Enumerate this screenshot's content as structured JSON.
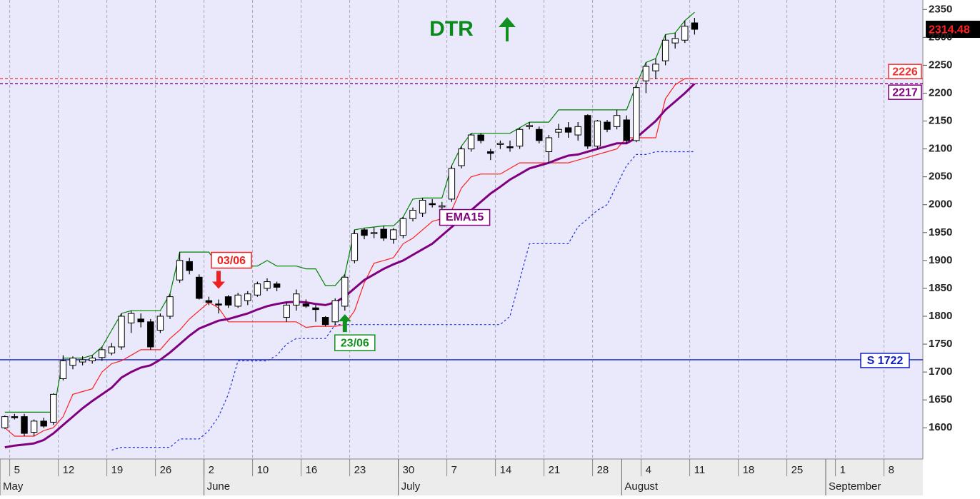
{
  "chart_data": {
    "type": "candlestick",
    "title": "DTR",
    "title_color": "#0a8a1a",
    "categories": [
      null,
      "5",
      null,
      null,
      null,
      null,
      "12",
      null,
      null,
      null,
      null,
      "19",
      null,
      null,
      null,
      null,
      "26",
      null,
      null,
      null,
      null,
      "2",
      null,
      null,
      null,
      null,
      "10",
      null,
      null,
      null,
      null,
      "16",
      null,
      null,
      null,
      null,
      "23",
      null,
      null,
      null,
      null,
      "30",
      null,
      null,
      null,
      null,
      "7",
      null,
      null,
      null,
      null,
      "14",
      null,
      null,
      null,
      null,
      "21",
      null,
      null,
      null,
      null,
      "28",
      null,
      null,
      null,
      null,
      "4",
      null,
      null,
      null,
      null,
      "11",
      null,
      null,
      null,
      null,
      "18",
      null,
      null,
      null,
      null,
      "25",
      null,
      null,
      null,
      null,
      "1",
      null,
      null,
      null,
      null,
      "8",
      null,
      null,
      null
    ],
    "months": [
      {
        "value": 0,
        "label": "May"
      },
      {
        "value": 21,
        "label": "June"
      },
      {
        "value": 41,
        "label": "July"
      },
      {
        "value": 64,
        "label": "August"
      },
      {
        "value": 85,
        "label": "September"
      }
    ],
    "candles": {
      "open": [
        1600,
        1620,
        1620,
        1592,
        1612,
        1610,
        1688,
        1712,
        1718,
        1720,
        1726,
        1734,
        1745,
        1788,
        1795,
        1790,
        1775,
        1800,
        1865,
        1898,
        1870,
        1828,
        1822,
        1835,
        1818,
        1828,
        1838,
        1850,
        1858,
        1798,
        1820,
        1822,
        1815,
        1798,
        1790,
        1818,
        1900,
        1955,
        1948,
        1956,
        1938,
        1945,
        1975,
        1985,
        2002,
        1996,
        2010,
        2070,
        2100,
        2125,
        2095,
        2108,
        2104,
        2105,
        2140,
        2135,
        2095,
        2130,
        2138,
        2125,
        2160,
        2105,
        2148,
        2140,
        2152,
        2115,
        2222,
        2240,
        2258,
        2290,
        2295,
        2326,
        null,
        null,
        null,
        null,
        null,
        null,
        null,
        null,
        null,
        null,
        null,
        null,
        null,
        null,
        null,
        null,
        null,
        null,
        null,
        null,
        null,
        null,
        null
      ],
      "high": [
        1622,
        1625,
        1625,
        1615,
        1618,
        1662,
        1730,
        1728,
        1728,
        1730,
        1745,
        1752,
        1805,
        1810,
        1805,
        1795,
        1805,
        1840,
        1915,
        1905,
        1875,
        1835,
        1830,
        1838,
        1842,
        1845,
        1862,
        1868,
        1862,
        1825,
        1848,
        1830,
        1820,
        1800,
        1832,
        1875,
        1955,
        1958,
        1960,
        1962,
        1958,
        1978,
        1995,
        2012,
        2010,
        2005,
        2070,
        2105,
        2128,
        2128,
        2100,
        2115,
        2115,
        2138,
        2148,
        2140,
        2125,
        2145,
        2148,
        2148,
        2162,
        2152,
        2152,
        2170,
        2160,
        2215,
        2255,
        2262,
        2305,
        2308,
        2330,
        2335,
        null,
        null,
        null,
        null,
        null,
        null,
        null,
        null,
        null,
        null,
        null,
        null,
        null,
        null,
        null,
        null,
        null,
        null,
        null,
        null,
        null,
        null,
        null
      ],
      "low": [
        1598,
        1615,
        1585,
        1585,
        1600,
        1605,
        1685,
        1705,
        1712,
        1715,
        1720,
        1730,
        1740,
        1770,
        1780,
        1740,
        1770,
        1795,
        1860,
        1875,
        1830,
        1820,
        1805,
        1815,
        1815,
        1820,
        1835,
        1845,
        1845,
        1790,
        1810,
        1815,
        1790,
        1782,
        1785,
        1810,
        1895,
        1938,
        1940,
        1935,
        1930,
        1940,
        1970,
        1978,
        1995,
        1985,
        2005,
        2065,
        2095,
        2110,
        2080,
        2100,
        2095,
        2100,
        2135,
        2110,
        2075,
        2120,
        2120,
        2115,
        2100,
        2100,
        2130,
        2135,
        2110,
        2112,
        2200,
        2225,
        2250,
        2280,
        2290,
        2305,
        null,
        null,
        null,
        null,
        null,
        null,
        null,
        null,
        null,
        null,
        null,
        null,
        null,
        null,
        null,
        null,
        null,
        null,
        null,
        null,
        null,
        null,
        null
      ],
      "close": [
        1620,
        1618,
        1590,
        1612,
        1603,
        1660,
        1720,
        1725,
        1722,
        1725,
        1740,
        1745,
        1800,
        1805,
        1790,
        1745,
        1800,
        1835,
        1900,
        1882,
        1832,
        1825,
        1820,
        1820,
        1838,
        1840,
        1858,
        1862,
        1852,
        1820,
        1840,
        1818,
        1812,
        1785,
        1828,
        1870,
        1948,
        1945,
        1950,
        1940,
        1955,
        1975,
        1990,
        2008,
        2000,
        1998,
        2065,
        2100,
        2125,
        2115,
        2092,
        2110,
        2103,
        2135,
        2142,
        2115,
        2120,
        2135,
        2130,
        2140,
        2105,
        2150,
        2135,
        2160,
        2115,
        2210,
        2248,
        2252,
        2295,
        2298,
        2320,
        2314.48,
        null,
        null,
        null,
        null,
        null,
        null,
        null,
        null,
        null,
        null,
        null,
        null,
        null,
        null,
        null,
        null,
        null,
        null,
        null,
        null,
        null,
        null,
        null
      ]
    },
    "series": [
      {
        "color": "#008000",
        "width": 1.2,
        "dash": "none",
        "values": [
          1628,
          1628,
          1628,
          1628,
          1628,
          1628,
          1725,
          1725,
          1725,
          1730,
          1745,
          1775,
          1805,
          1810,
          1810,
          1810,
          1810,
          1840,
          1915,
          1915,
          1915,
          1915,
          1890,
          1890,
          1890,
          1890,
          1890,
          1900,
          1890,
          1890,
          1890,
          1885,
          1885,
          1855,
          1855,
          1875,
          1955,
          1958,
          1960,
          1962,
          1962,
          1978,
          2010,
          2012,
          2012,
          2012,
          2070,
          2105,
          2128,
          2128,
          2128,
          2128,
          2128,
          2138,
          2148,
          2148,
          2148,
          2170,
          2170,
          2170,
          2170,
          2170,
          2170,
          2170,
          2170,
          2215,
          2255,
          2262,
          2305,
          2308,
          2330,
          2345,
          null,
          null,
          null,
          null,
          null,
          null,
          null,
          null,
          null,
          null,
          null,
          null,
          null,
          null,
          null,
          null,
          null,
          null,
          null,
          null,
          null,
          null,
          null
        ]
      },
      {
        "color": "#ff2020",
        "width": 1.2,
        "dash": "none",
        "values": [
          1600,
          1585,
          1585,
          1585,
          1595,
          1600,
          1620,
          1660,
          1665,
          1670,
          1700,
          1715,
          1720,
          1730,
          1740,
          1740,
          1740,
          1760,
          1775,
          1795,
          1810,
          1825,
          1815,
          1790,
          1790,
          1790,
          1790,
          1790,
          1790,
          1790,
          1790,
          1780,
          1782,
          1782,
          1782,
          1785,
          1810,
          1860,
          1895,
          1900,
          1905,
          1930,
          1940,
          1955,
          1970,
          1975,
          1990,
          2030,
          2050,
          2055,
          2055,
          2055,
          2065,
          2075,
          2075,
          2075,
          2075,
          2075,
          2075,
          2080,
          2085,
          2090,
          2095,
          2100,
          2120,
          2120,
          2120,
          2120,
          2190,
          2215,
          2226,
          2226,
          null,
          null,
          null,
          null,
          null,
          null,
          null,
          null,
          null,
          null,
          null,
          null,
          null,
          null,
          null,
          null,
          null,
          null,
          null,
          null,
          null,
          null,
          null
        ]
      },
      {
        "color": "#2030e0",
        "width": 1.2,
        "dash": "3 3",
        "values": [
          null,
          null,
          null,
          null,
          null,
          null,
          null,
          null,
          null,
          null,
          null,
          1560,
          1565,
          1565,
          1565,
          1565,
          1565,
          1565,
          1580,
          1580,
          1580,
          1595,
          1620,
          1660,
          1720,
          1720,
          1720,
          1720,
          1730,
          1750,
          1760,
          1760,
          1760,
          1760,
          1785,
          1785,
          1785,
          1785,
          1785,
          1785,
          1785,
          1785,
          1785,
          1785,
          1785,
          1785,
          1785,
          1785,
          1785,
          1785,
          1785,
          1785,
          1800,
          1865,
          1930,
          1930,
          1930,
          1930,
          1930,
          1960,
          1975,
          1990,
          2000,
          2035,
          2070,
          2090,
          2090,
          2095,
          2095,
          2095,
          2095,
          2095,
          null,
          null,
          null,
          null,
          null,
          null,
          null,
          null,
          null,
          null,
          null,
          null,
          null,
          null,
          null,
          null,
          null,
          null,
          null,
          null,
          null,
          null,
          null
        ]
      },
      {
        "name": "EMA15",
        "color": "#800080",
        "width": 3,
        "dash": "none",
        "values": [
          1565,
          1568,
          1570,
          1572,
          1578,
          1590,
          1605,
          1620,
          1635,
          1648,
          1660,
          1672,
          1690,
          1700,
          1708,
          1712,
          1722,
          1735,
          1750,
          1765,
          1778,
          1785,
          1792,
          1795,
          1800,
          1805,
          1812,
          1818,
          1822,
          1825,
          1826,
          1825,
          1822,
          1820,
          1825,
          1835,
          1850,
          1865,
          1875,
          1885,
          1893,
          1900,
          1910,
          1920,
          1930,
          1945,
          1960,
          1975,
          1990,
          2005,
          2020,
          2032,
          2045,
          2055,
          2065,
          2070,
          2075,
          2082,
          2088,
          2090,
          2095,
          2100,
          2105,
          2110,
          2110,
          2120,
          2135,
          2150,
          2170,
          2185,
          2200,
          2217,
          null,
          null,
          null,
          null,
          null,
          null,
          null,
          null,
          null,
          null,
          null,
          null,
          null,
          null,
          null,
          null,
          null,
          null,
          null,
          null,
          null,
          null,
          null
        ]
      }
    ],
    "levels": [
      {
        "value": 2226,
        "color": "#f03030",
        "dash": "4 3"
      },
      {
        "value": 2217,
        "color": "#800080",
        "dash": "4 3"
      },
      {
        "value": 1722,
        "label": "S 1722",
        "color": "#1020c0",
        "dash": "none"
      }
    ],
    "signals": [
      {
        "label": "03/06",
        "category": 22,
        "direction": "down",
        "color": "#f02020"
      },
      {
        "label": "23/06",
        "category": 35,
        "direction": "up",
        "color": "#109020"
      }
    ],
    "ylim": [
      1544,
      2367
    ],
    "yticks": [
      1600,
      1650,
      1700,
      1750,
      1800,
      1850,
      1900,
      1950,
      2000,
      2050,
      2100,
      2150,
      2200,
      2250,
      2300,
      2350
    ],
    "grid": true
  }
}
